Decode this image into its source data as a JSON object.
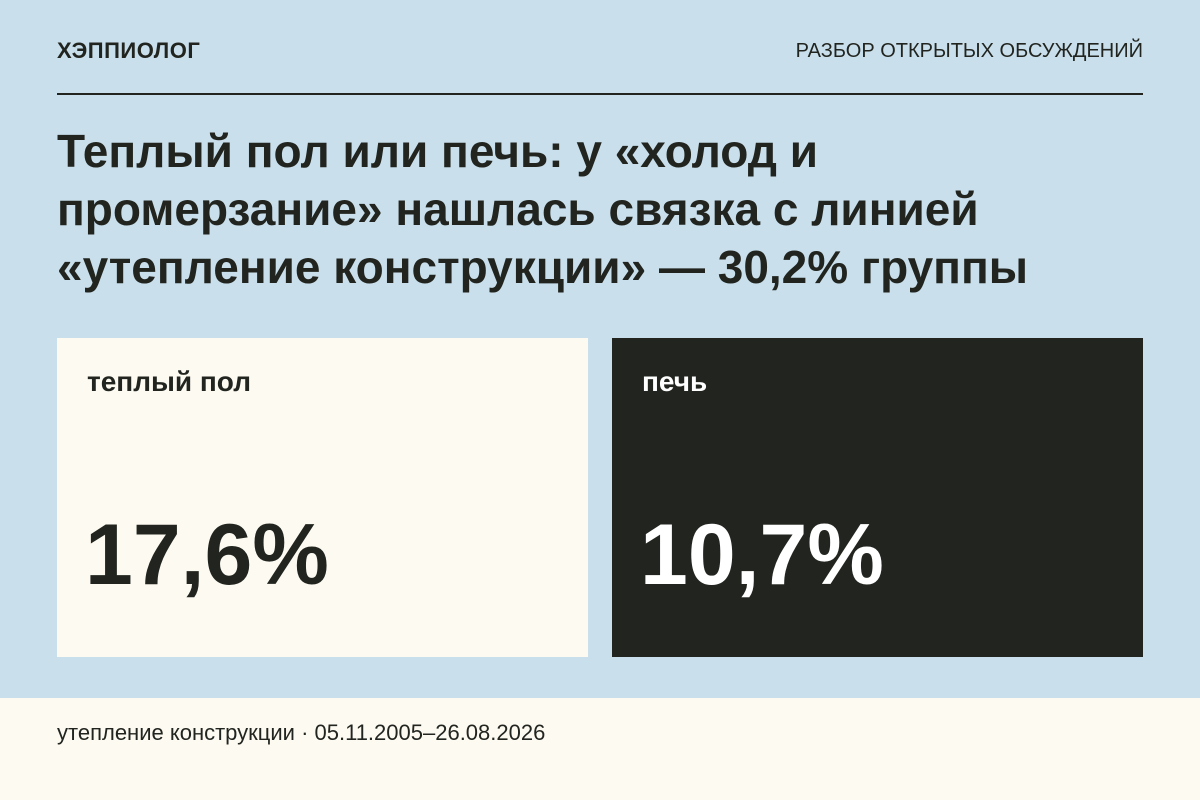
{
  "header": {
    "brand": "ХЭППИОЛОГ",
    "section": "РАЗБОР ОТКРЫТЫХ ОБСУЖДЕНИЙ"
  },
  "title": "Теплый пол или печь: у «холод и промерзание» нашлась связка с линией «утепление конструкции» — 30,2% группы",
  "cards": [
    {
      "label": "теплый пол",
      "value": "17,6%"
    },
    {
      "label": "печь",
      "value": "10,7%"
    }
  ],
  "footer": "утепление конструкции · 05.11.2005–26.08.2026"
}
